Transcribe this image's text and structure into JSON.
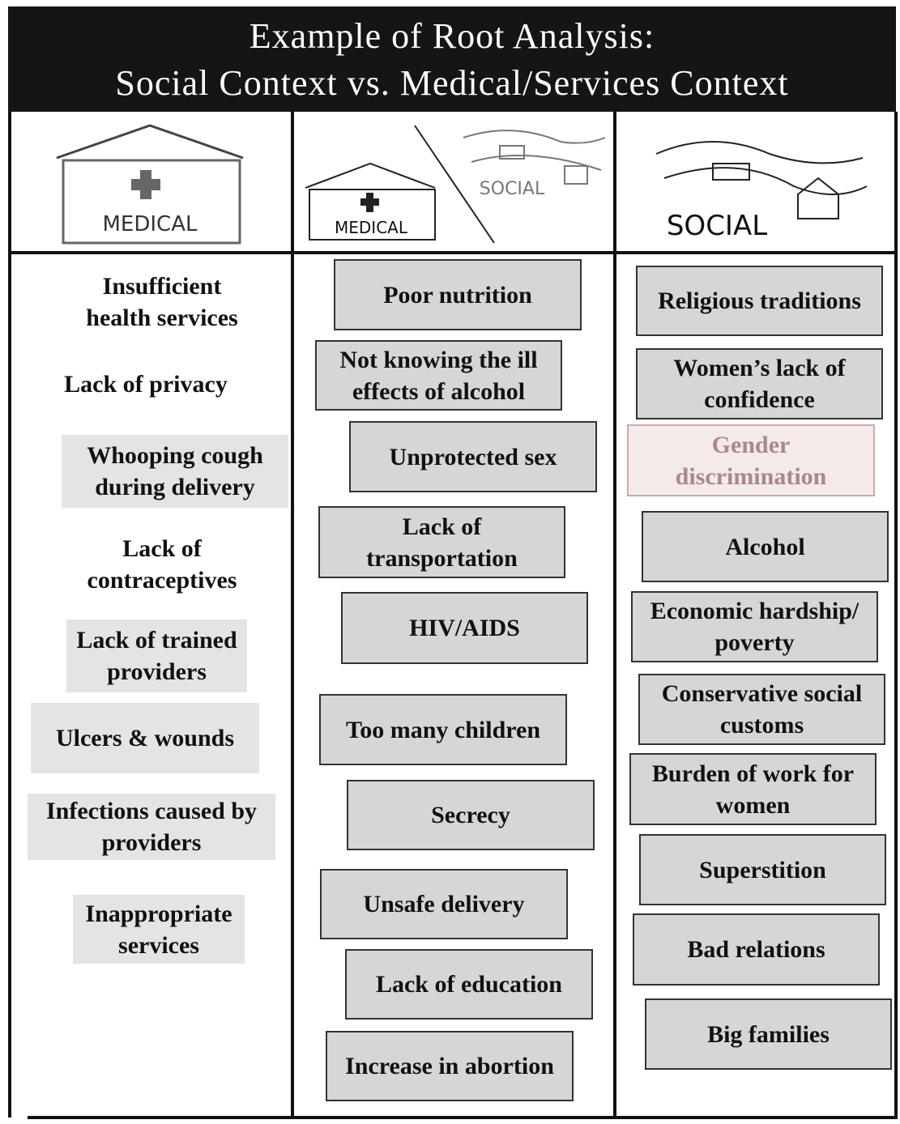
{
  "header": {
    "title": [
      "Example of Root Analysis:",
      "Social Context vs. Medical/Services Context"
    ]
  },
  "columns": [
    {
      "icons": [
        "MEDICAL"
      ],
      "items": [
        "Insufficient health services",
        "Lack of privacy",
        "Whooping cough during delivery",
        "Lack of contraceptives",
        "Lack of trained providers",
        "Ulcers & wounds",
        "Infections caused by providers",
        "Inappropriate services"
      ]
    },
    {
      "icons": [
        "MEDICAL",
        "SOCIAL"
      ],
      "items": [
        "Poor nutrition",
        "Not knowing the ill effects of alcohol",
        "Unprotected sex",
        "Lack of transportation",
        "HIV/AIDS",
        "Too many children",
        "Secrecy",
        "Unsafe delivery",
        "Lack of education",
        "Increase in abortion"
      ]
    },
    {
      "icons": [
        "SOCIAL"
      ],
      "items": [
        "Religious traditions",
        "Women’s lack of confidence",
        "Gender discrimination",
        "Alcohol",
        "Economic hardship/ poverty",
        "Conservative social customs",
        "Burden of work for women",
        "Superstition",
        "Bad relations",
        "Big families"
      ]
    }
  ]
}
